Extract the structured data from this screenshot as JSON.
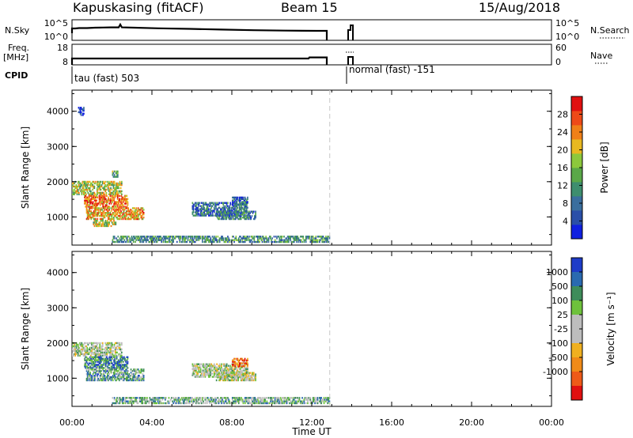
{
  "header": {
    "station": "Kapuskasing (fitACF)",
    "beam": "Beam 15",
    "date": "15/Aug/2018"
  },
  "strip_panels": {
    "nsky_label": "N.Sky",
    "nsky_ticks": [
      "10^5",
      "10^0"
    ],
    "nsearch_label": "N.Search",
    "nsearch_ticks": [
      "10^5",
      "10^0"
    ],
    "freq_label_1": "Freq.",
    "freq_label_2": "[MHz]",
    "freq_ticks": [
      "18",
      "8"
    ],
    "nave_label": "Nave",
    "nave_ticks": [
      "60",
      "0"
    ],
    "cpid_label": "CPID",
    "cpid_1": "tau (fast) 503",
    "cpid_2": "normal (fast) -151"
  },
  "chart_data": [
    {
      "type": "heatmap",
      "name_key": "power",
      "ylabel": "Slant Range [km]",
      "xlabel": "Time UT",
      "xlim": [
        0,
        24
      ],
      "ylim": [
        200,
        4600
      ],
      "x_ticks": [
        "00:00",
        "04:00",
        "08:00",
        "12:00",
        "16:00",
        "20:00",
        "00:00"
      ],
      "y_ticks": [
        1000,
        2000,
        3000,
        4000
      ],
      "colorbar_label": "Power [dB]",
      "colorbar_ticks": [
        "4",
        "8",
        "12",
        "16",
        "20",
        "24",
        "28"
      ],
      "colorbar_colors": [
        "#1020e0",
        "#2a4fa8",
        "#3a6e9e",
        "#3e8e6e",
        "#5aa848",
        "#8cc83c",
        "#e8b820",
        "#f08018",
        "#ee4a18",
        "#e01010"
      ],
      "regions": [
        {
          "t0": 0.0,
          "t1": 2.5,
          "r0": 1600,
          "r1": 2000,
          "level": 0.55
        },
        {
          "t0": 0.6,
          "t1": 2.8,
          "r0": 1250,
          "r1": 1600,
          "level": 0.8
        },
        {
          "t0": 0.7,
          "t1": 3.6,
          "r0": 900,
          "r1": 1250,
          "level": 0.7
        },
        {
          "t0": 1.0,
          "t1": 2.2,
          "r0": 700,
          "r1": 900,
          "level": 0.55
        },
        {
          "t0": 6.0,
          "t1": 8.8,
          "r0": 1000,
          "r1": 1400,
          "level": 0.25
        },
        {
          "t0": 7.2,
          "t1": 9.2,
          "r0": 900,
          "r1": 1150,
          "level": 0.3
        },
        {
          "t0": 8.0,
          "t1": 8.8,
          "r0": 1300,
          "r1": 1550,
          "level": 0.2
        },
        {
          "t0": 2.0,
          "t1": 12.9,
          "r0": 250,
          "r1": 450,
          "level": 0.35
        },
        {
          "t0": 0.3,
          "t1": 0.6,
          "r0": 3850,
          "r1": 4100,
          "level": 0.1
        },
        {
          "t0": 2.0,
          "t1": 2.3,
          "r0": 2100,
          "r1": 2300,
          "level": 0.45
        }
      ]
    },
    {
      "type": "heatmap",
      "name_key": "velocity",
      "ylabel": "Slant Range [km]",
      "xlabel": "Time UT",
      "xlim": [
        0,
        24
      ],
      "ylim": [
        200,
        4600
      ],
      "x_ticks": [
        "00:00",
        "04:00",
        "08:00",
        "12:00",
        "16:00",
        "20:00",
        "00:00"
      ],
      "y_ticks": [
        1000,
        2000,
        3000,
        4000
      ],
      "colorbar_label": "Velocity [m s⁻¹]",
      "colorbar_ticks": [
        "1000",
        "500",
        "100",
        "25",
        "-25",
        "-100",
        "-500",
        "-1000"
      ],
      "colorbar_colors": [
        "#1e3cc8",
        "#2a6ab0",
        "#3e8c5a",
        "#6ec23c",
        "#bdbdbd",
        "#bdbdbd",
        "#f0b020",
        "#f08a18",
        "#ee5a18",
        "#e01010"
      ],
      "regions": [
        {
          "t0": 0.0,
          "t1": 2.5,
          "r0": 1600,
          "r1": 2000,
          "level": 0.45
        },
        {
          "t0": 0.6,
          "t1": 2.8,
          "r0": 1250,
          "r1": 1600,
          "level": 0.2
        },
        {
          "t0": 0.7,
          "t1": 3.6,
          "r0": 900,
          "r1": 1250,
          "level": 0.3
        },
        {
          "t0": 6.0,
          "t1": 8.8,
          "r0": 1000,
          "r1": 1400,
          "level": 0.45
        },
        {
          "t0": 7.2,
          "t1": 9.2,
          "r0": 900,
          "r1": 1150,
          "level": 0.5
        },
        {
          "t0": 8.0,
          "t1": 8.8,
          "r0": 1300,
          "r1": 1550,
          "level": 0.8
        },
        {
          "t0": 2.0,
          "t1": 12.9,
          "r0": 250,
          "r1": 450,
          "level": 0.35
        }
      ]
    }
  ]
}
